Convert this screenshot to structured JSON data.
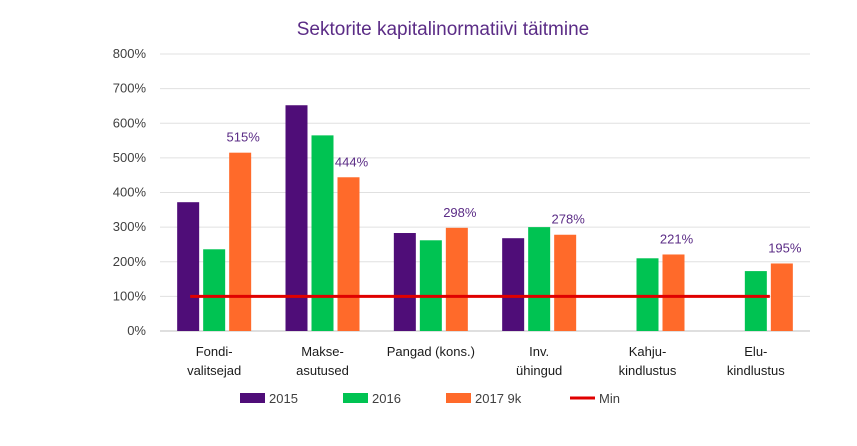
{
  "chart_data": {
    "type": "bar",
    "title": "Sektorite kapitalinormatiivi täitmine",
    "categories": [
      [
        "Fondi-",
        "valitsejad"
      ],
      [
        "Makse-",
        "asutused"
      ],
      [
        "Pangad (kons.)"
      ],
      [
        "Inv.",
        "ühingud"
      ],
      [
        "Kahju-",
        "kindlustus"
      ],
      [
        "Elu-",
        "kindlustus"
      ]
    ],
    "series": [
      {
        "name": "2015",
        "color": "#4f0d78",
        "values": [
          372,
          652,
          283,
          268,
          null,
          null
        ]
      },
      {
        "name": "2016",
        "color": "#00c352",
        "values": [
          236,
          565,
          262,
          300,
          210,
          173
        ]
      },
      {
        "name": "2017 9k",
        "color": "#ff6a2a",
        "values": [
          515,
          444,
          298,
          278,
          221,
          195
        ]
      }
    ],
    "data_labels": {
      "series": "2017 9k",
      "labels": [
        "515%",
        "444%",
        "298%",
        "278%",
        "221%",
        "195%"
      ]
    },
    "min_line": {
      "name": "Min",
      "value": 100,
      "color": "#e00000"
    },
    "ylim": [
      0,
      800
    ],
    "yticks": [
      0,
      100,
      200,
      300,
      400,
      500,
      600,
      700,
      800
    ],
    "ytick_labels": [
      "0%",
      "100%",
      "200%",
      "300%",
      "400%",
      "500%",
      "600%",
      "700%",
      "800%"
    ],
    "grid": true,
    "legend_position": "bottom",
    "legend": [
      "2015",
      "2016",
      "2017 9k",
      "Min"
    ]
  }
}
